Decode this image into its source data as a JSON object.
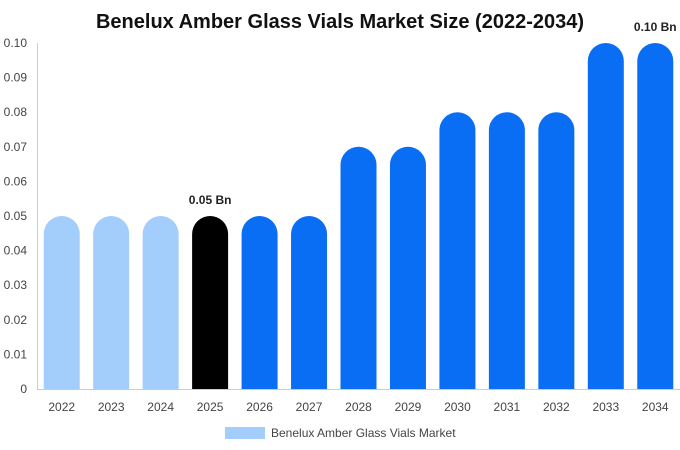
{
  "chart_data": {
    "type": "bar",
    "title": "Benelux Amber Glass Vials Market Size (2022-2034)",
    "xlabel": "",
    "ylabel": "",
    "categories": [
      "2022",
      "2023",
      "2024",
      "2025",
      "2026",
      "2027",
      "2028",
      "2029",
      "2030",
      "2031",
      "2032",
      "2033",
      "2034"
    ],
    "series": [
      {
        "name": "Benelux Amber Glass Vials Market",
        "values": [
          0.05,
          0.05,
          0.05,
          0.05,
          0.05,
          0.05,
          0.07,
          0.07,
          0.08,
          0.08,
          0.08,
          0.1,
          0.1
        ]
      }
    ],
    "bar_colors": [
      "#a3cdfb",
      "#a3cdfb",
      "#a3cdfb",
      "#000000",
      "#0a6ef5",
      "#0a6ef5",
      "#0a6ef5",
      "#0a6ef5",
      "#0a6ef5",
      "#0a6ef5",
      "#0a6ef5",
      "#0a6ef5",
      "#0a6ef5"
    ],
    "legend_color": "#a3cdfb",
    "ylim": [
      0,
      0.1
    ],
    "yticks": [
      "0",
      "0.01",
      "0.02",
      "0.03",
      "0.04",
      "0.05",
      "0.06",
      "0.07",
      "0.08",
      "0.09",
      "0.10"
    ],
    "data_labels": [
      {
        "index": 3,
        "text": "0.05 Bn"
      },
      {
        "index": 12,
        "text": "0.10 Bn"
      }
    ],
    "grid": false,
    "legend_position": "bottom"
  }
}
